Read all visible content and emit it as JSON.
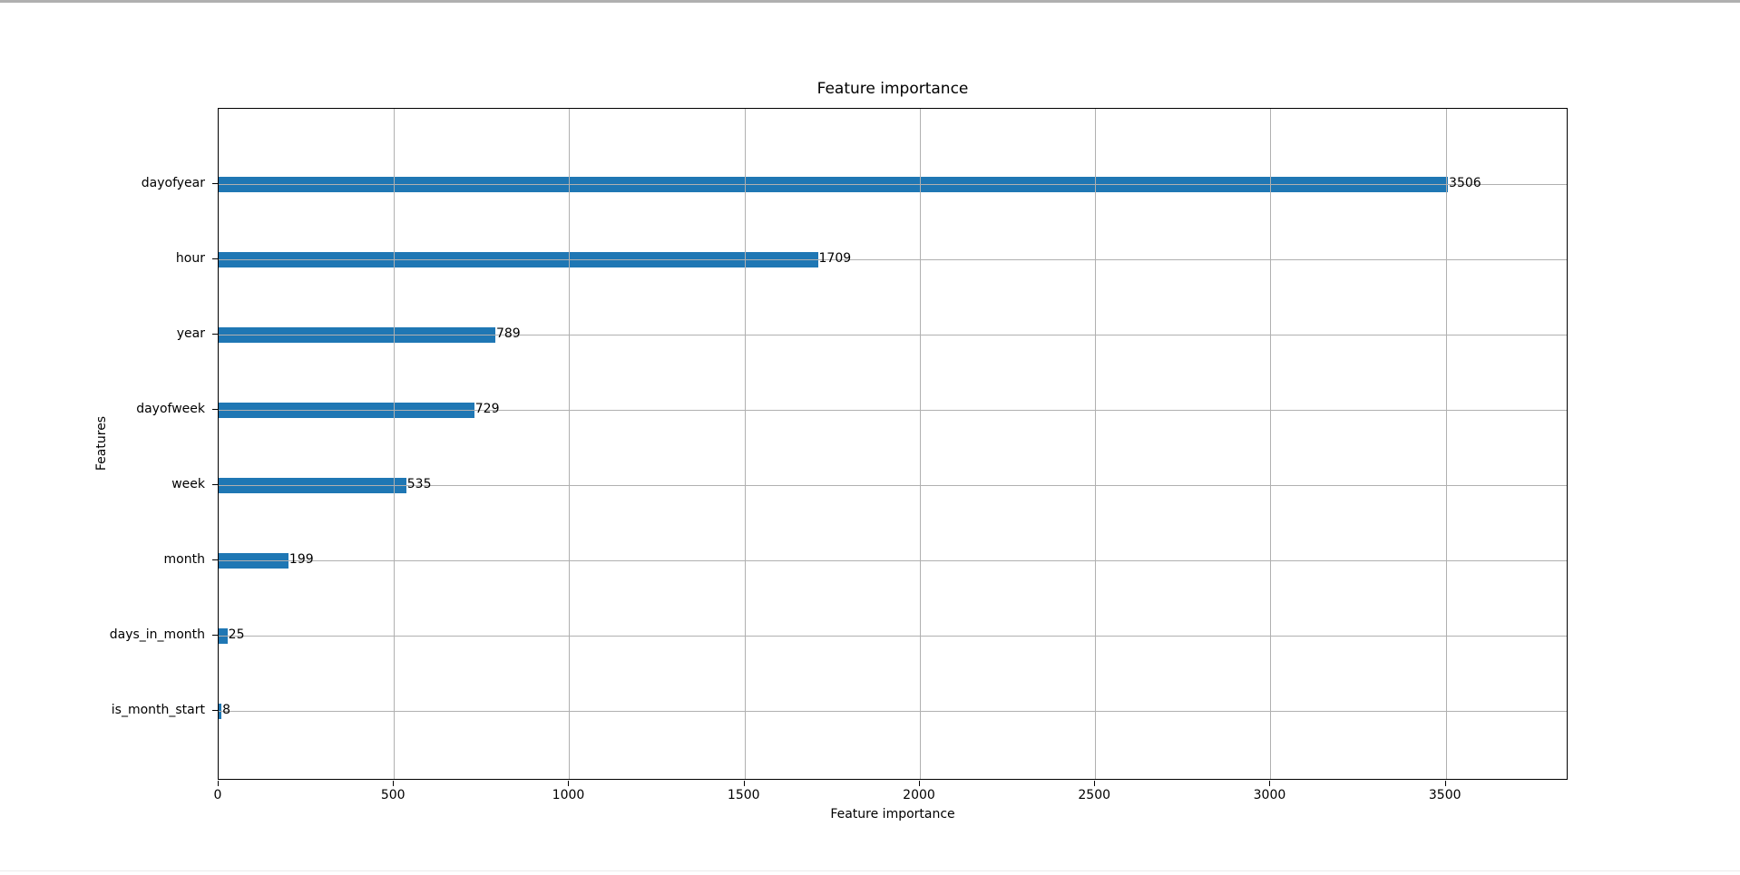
{
  "chart_data": {
    "type": "bar",
    "orientation": "horizontal",
    "title": "Feature importance",
    "xlabel": "Feature importance",
    "ylabel": "Features",
    "categories": [
      "dayofyear",
      "hour",
      "year",
      "dayofweek",
      "week",
      "month",
      "days_in_month",
      "is_month_start"
    ],
    "values": [
      3506,
      1709,
      789,
      729,
      535,
      199,
      25,
      8
    ],
    "value_labels": [
      "3506",
      "1709",
      "789",
      "729",
      "535",
      "199",
      "25",
      "8"
    ],
    "x_ticks": [
      0,
      500,
      1000,
      1500,
      2000,
      2500,
      3000,
      3500
    ],
    "x_tick_labels": [
      "0",
      "500",
      "1000",
      "1500",
      "2000",
      "2500",
      "3000",
      "3500"
    ],
    "xlim": [
      0,
      3850
    ],
    "grid": true,
    "legend": false,
    "bar_color": "#1f77b4",
    "grid_color": "#b0b0b0",
    "spine_color": "#000000",
    "background_color": "#ffffff"
  }
}
